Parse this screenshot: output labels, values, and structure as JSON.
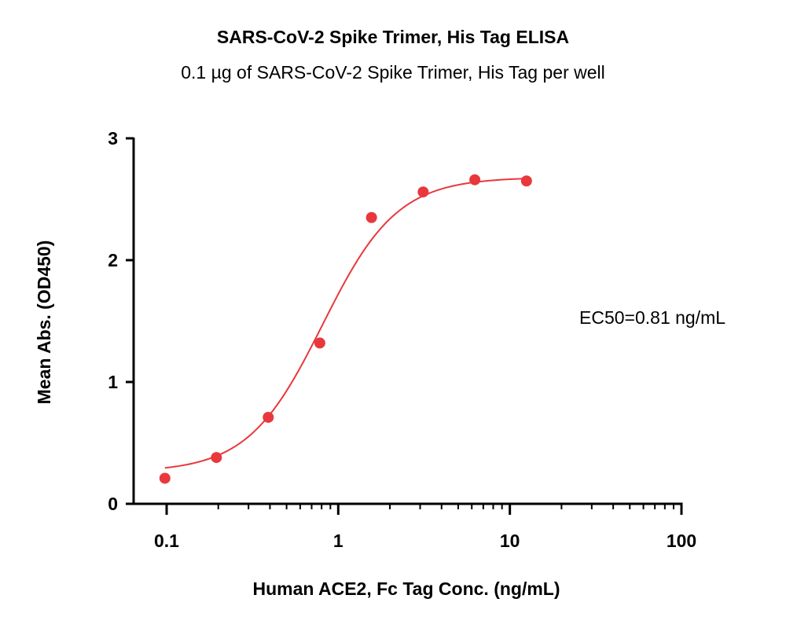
{
  "chart_data": {
    "type": "scatter",
    "title": "SARS-CoV-2 Spike Trimer, His Tag ELISA",
    "subtitle": "0.1 µg of SARS-CoV-2 Spike Trimer, His Tag per well",
    "xlabel": "Human ACE2, Fc Tag Conc. (ng/mL)",
    "ylabel": "Mean Abs. (OD450)",
    "xscale": "log",
    "xlim": [
      0.1,
      100
    ],
    "ylim": [
      0,
      3
    ],
    "xticks": [
      0.1,
      1,
      10,
      100
    ],
    "xtick_labels": [
      "0.1",
      "1",
      "10",
      "100"
    ],
    "yticks": [
      0,
      1,
      2,
      3
    ],
    "ytick_labels": [
      "0",
      "1",
      "2",
      "3"
    ],
    "grid": false,
    "color": "#e8383d",
    "series": [
      {
        "x": [
          0.0977,
          0.195,
          0.391,
          0.781,
          1.5625,
          3.125,
          6.25,
          12.5
        ],
        "y": [
          0.21,
          0.38,
          0.71,
          1.32,
          2.35,
          2.56,
          2.66,
          2.65
        ]
      }
    ],
    "fit": {
      "model": "4PL",
      "bottom": 0.26,
      "top": 2.68,
      "ec50": 0.81,
      "hill": 2.0,
      "x_range": [
        0.0977,
        12.5
      ]
    },
    "annotation": "EC50=0.81 ng/mL"
  }
}
